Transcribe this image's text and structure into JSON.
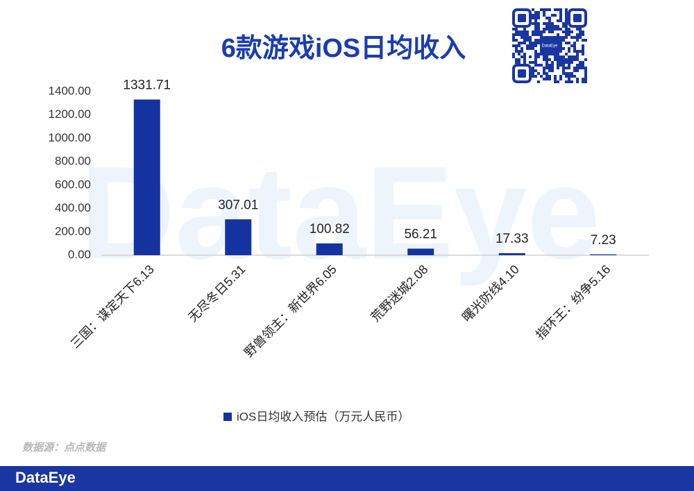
{
  "chart_data": {
    "type": "bar",
    "title": "6款游戏iOS日均收入",
    "watermark": "DataEye",
    "categories": [
      "三国：谋定天下6.13",
      "无尽冬日5.31",
      "野兽领主：新世界6.05",
      "荒野迷城2.08",
      "曙光防线4.10",
      "指环王：纷争5.16"
    ],
    "series": [
      {
        "name": "iOS日均收入预估（万元人民币）",
        "color": "#1533a0",
        "values": [
          1331.71,
          307.01,
          100.82,
          56.21,
          17.33,
          7.23
        ]
      }
    ],
    "ylim": [
      0,
      1400
    ],
    "yticks": [
      {
        "value": 0,
        "label": "0.00"
      },
      {
        "value": 200,
        "label": "200.00"
      },
      {
        "value": 400,
        "label": "400.00"
      },
      {
        "value": 600,
        "label": "600.00"
      },
      {
        "value": 800,
        "label": "800.00"
      },
      {
        "value": 1000,
        "label": "1000.00"
      },
      {
        "value": 1200,
        "label": "1200.00"
      },
      {
        "value": 1400,
        "label": "1400.00"
      }
    ],
    "grid": false,
    "legend": "bottom",
    "source": "数据源：点点数据",
    "footer_brand": "DataEye",
    "qr_label": "DataEye"
  }
}
